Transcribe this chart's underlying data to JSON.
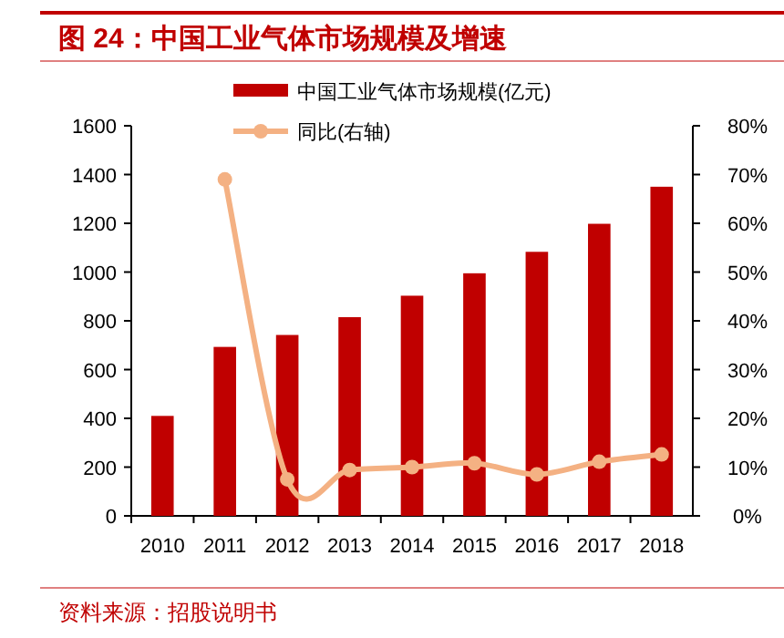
{
  "chart_data": {
    "type": "bar",
    "title": "图 24：中国工业气体市场规模及增速",
    "categories": [
      "2010",
      "2011",
      "2012",
      "2013",
      "2014",
      "2015",
      "2016",
      "2017",
      "2018"
    ],
    "series": [
      {
        "name": "中国工业气体市场规模(亿元)",
        "color": "#c00000",
        "values": [
          410,
          693,
          742,
          815,
          903,
          995,
          1083,
          1198,
          1350
        ]
      },
      {
        "name": "同比(右轴)",
        "type": "line",
        "axis": "y2",
        "color": "#f4b183",
        "marker": "circle",
        "values": [
          null,
          69,
          7.5,
          9.4,
          10,
          10.8,
          8.5,
          11.1,
          12.6
        ]
      }
    ],
    "ylim": [
      0,
      1600
    ],
    "yticks": [
      0,
      200,
      400,
      600,
      800,
      1000,
      1200,
      1400,
      1600
    ],
    "y2lim": [
      0,
      80
    ],
    "y2ticks": [
      {
        "value": 0,
        "label": "0%"
      },
      {
        "value": 10,
        "label": "10%"
      },
      {
        "value": 20,
        "label": "20%"
      },
      {
        "value": 30,
        "label": "30%"
      },
      {
        "value": 40,
        "label": "40%"
      },
      {
        "value": 50,
        "label": "50%"
      },
      {
        "value": 60,
        "label": "60%"
      },
      {
        "value": 70,
        "label": "70%"
      },
      {
        "value": 80,
        "label": "80%"
      }
    ],
    "legend": "top",
    "grid": false,
    "annotations": [
      "资料来源：招股说明书"
    ]
  }
}
